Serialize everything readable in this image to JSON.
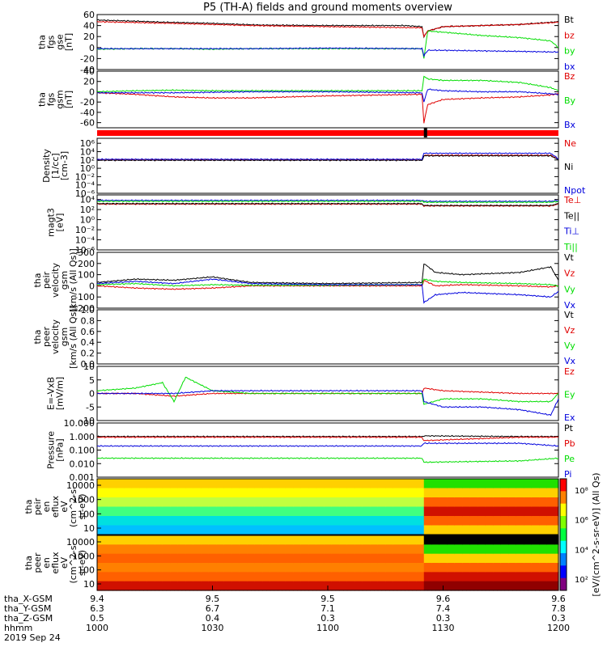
{
  "title": "P5 (TH-A) fields and ground moments overview",
  "colors": {
    "black": "#000000",
    "red": "#e00000",
    "green": "#00dd00",
    "blue": "#0000dd",
    "bar_red": "#ff0000"
  },
  "x_axis": {
    "ticks": [
      {
        "label": "1000",
        "x": 0
      },
      {
        "label": "1030",
        "x": 30
      },
      {
        "label": "1100",
        "x": 60
      },
      {
        "label": "1130",
        "x": 90
      },
      {
        "label": "1200",
        "x": 120
      }
    ],
    "orbit_rows": [
      {
        "label": "tha_X-GSM",
        "values": [
          "9.4",
          "9.5",
          "9.5",
          "9.6",
          "9.6"
        ]
      },
      {
        "label": "tha_Y-GSM",
        "values": [
          "6.3",
          "6.7",
          "7.1",
          "7.4",
          "7.8"
        ]
      },
      {
        "label": "tha_Z-GSM",
        "values": [
          "0.5",
          "0.4",
          "0.3",
          "0.3",
          "0.3"
        ]
      },
      {
        "label": "hhmm",
        "values": [
          "1000",
          "1030",
          "1100",
          "1130",
          "1200"
        ]
      }
    ],
    "date": "2019 Sep 24"
  },
  "chart_data": [
    {
      "type": "line",
      "panel": "fgs_gse",
      "ylabel": [
        "tha",
        "fgs",
        "gse",
        "[nT]"
      ],
      "ylim": [
        -40,
        60
      ],
      "yticks": [
        -40,
        -20,
        0,
        20,
        40,
        60
      ],
      "series": [
        {
          "name": "Bt",
          "color": "black",
          "x": [
            0,
            10,
            18,
            25,
            30,
            34,
            38,
            42,
            60,
            80,
            84.5,
            85,
            86,
            90,
            100,
            110,
            118,
            120
          ],
          "y": [
            50,
            48,
            46,
            45,
            44,
            43,
            42,
            41,
            40,
            40,
            38,
            20,
            30,
            38,
            40,
            42,
            46,
            47
          ]
        },
        {
          "name": "bz",
          "color": "red",
          "x": [
            0,
            20,
            40,
            60,
            84.5,
            85,
            86,
            90,
            100,
            110,
            120
          ],
          "y": [
            47,
            44,
            40,
            38,
            36,
            20,
            30,
            38,
            40,
            42,
            46
          ]
        },
        {
          "name": "by",
          "color": "green",
          "x": [
            0,
            10,
            20,
            30,
            40,
            60,
            84.5,
            85,
            86,
            90,
            100,
            110,
            118,
            120
          ],
          "y": [
            -3,
            -2,
            -2,
            -3,
            -2,
            -2,
            -2,
            -20,
            30,
            28,
            22,
            18,
            12,
            0
          ]
        },
        {
          "name": "bx",
          "color": "blue",
          "x": [
            0,
            20,
            40,
            60,
            84.5,
            85,
            86,
            90,
            100,
            110,
            118,
            120
          ],
          "y": [
            -2,
            -2,
            -2,
            -1,
            -2,
            -15,
            -5,
            -5,
            -6,
            -7,
            -8,
            -8
          ]
        }
      ]
    },
    {
      "type": "line",
      "panel": "fgs_gsm",
      "ylabel": [
        "tha",
        "fgs",
        "gsm",
        "[nT]"
      ],
      "ylim": [
        -70,
        40
      ],
      "yticks": [
        -60,
        -40,
        -20,
        0,
        20,
        40
      ],
      "series": [
        {
          "name": "Bz",
          "color": "red",
          "x": [
            0,
            10,
            20,
            30,
            40,
            60,
            84.5,
            85,
            86,
            90,
            100,
            110,
            118,
            120
          ],
          "y": [
            -2,
            -5,
            -10,
            -12,
            -12,
            -8,
            -5,
            -60,
            -25,
            -15,
            -12,
            -10,
            -6,
            -4
          ]
        },
        {
          "name": "By",
          "color": "green",
          "x": [
            0,
            10,
            20,
            30,
            40,
            60,
            84.5,
            85,
            86,
            90,
            100,
            110,
            118,
            120
          ],
          "y": [
            0,
            2,
            3,
            2,
            2,
            2,
            2,
            30,
            25,
            22,
            22,
            18,
            8,
            2
          ]
        },
        {
          "name": "Bx",
          "color": "blue",
          "x": [
            0,
            20,
            40,
            60,
            84.5,
            85,
            86,
            90,
            100,
            110,
            120
          ],
          "y": [
            -2,
            -2,
            0,
            0,
            -2,
            -20,
            5,
            2,
            0,
            0,
            -5
          ]
        }
      ]
    },
    {
      "type": "line",
      "panel": "density",
      "ylabel": [
        "Density",
        "[1/cc]",
        "[cm-3]"
      ],
      "ylim_log10": [
        -7,
        4
      ],
      "ytick_labels": [
        "10⁶",
        "10⁴",
        "10²",
        "10⁰",
        "10⁻²",
        "10⁻⁴",
        "10⁻⁶"
      ],
      "series": [
        {
          "name": "Ne",
          "color": "red",
          "x": [
            0,
            20,
            40,
            84.5,
            85,
            90,
            118,
            120
          ],
          "log10_y": [
            -0.3,
            -0.3,
            -0.3,
            -0.3,
            0.6,
            0.6,
            0.6,
            -0.2
          ]
        },
        {
          "name": "Ni",
          "color": "black",
          "x": [
            0,
            20,
            40,
            84.5,
            85,
            90,
            118,
            120
          ],
          "log10_y": [
            -0.4,
            -0.4,
            -0.4,
            -0.4,
            0.5,
            0.5,
            0.5,
            -0.3
          ]
        },
        {
          "name": "Npot",
          "color": "blue",
          "x": [
            0,
            20,
            40,
            84.5,
            85,
            90,
            118,
            120
          ],
          "log10_y": [
            -0.2,
            -0.2,
            -0.2,
            -0.2,
            1.0,
            1.0,
            1.0,
            -0.1
          ]
        }
      ]
    },
    {
      "type": "line",
      "panel": "temperature",
      "ylabel": [
        "magt3",
        "[eV]"
      ],
      "ylim_log10": [
        -7,
        5
      ],
      "ytick_labels": [
        "10⁴",
        "10²",
        "10⁰",
        "10⁻²",
        "10⁻⁴",
        "10⁻⁶"
      ],
      "series": [
        {
          "name": "Te⊥",
          "color": "red",
          "x": [
            0,
            40,
            84.5,
            85,
            118,
            120
          ],
          "log10_y": [
            3.0,
            3.0,
            3.0,
            2.6,
            2.6,
            3.0
          ]
        },
        {
          "name": "Te||",
          "color": "black",
          "x": [
            0,
            40,
            84.5,
            85,
            118,
            120
          ],
          "log10_y": [
            3.1,
            3.1,
            3.1,
            2.7,
            2.7,
            3.1
          ]
        },
        {
          "name": "Ti⊥",
          "color": "blue",
          "x": [
            0,
            40,
            84.5,
            85,
            118,
            120
          ],
          "log10_y": [
            3.8,
            3.8,
            3.8,
            3.6,
            3.6,
            3.8
          ]
        },
        {
          "name": "Ti||",
          "color": "green",
          "x": [
            0,
            40,
            84.5,
            85,
            118,
            120
          ],
          "log10_y": [
            3.6,
            3.6,
            3.6,
            3.4,
            3.4,
            3.6
          ]
        }
      ]
    },
    {
      "type": "line",
      "panel": "peir_velocity",
      "ylabel": [
        "tha",
        "peir",
        "velocity",
        "gsm",
        "[km/s (All Qs)]"
      ],
      "ylim": [
        -200,
        300
      ],
      "yticks": [
        -200,
        -100,
        0,
        100,
        200,
        300
      ],
      "series": [
        {
          "name": "Vt",
          "color": "black",
          "x": [
            0,
            10,
            20,
            30,
            40,
            60,
            84.5,
            85,
            88,
            95,
            110,
            118,
            120
          ],
          "y": [
            30,
            60,
            50,
            80,
            30,
            20,
            30,
            200,
            120,
            100,
            120,
            170,
            50
          ]
        },
        {
          "name": "Vz",
          "color": "red",
          "x": [
            0,
            10,
            20,
            30,
            40,
            60,
            84.5,
            85,
            88,
            95,
            110,
            118,
            120
          ],
          "y": [
            0,
            -20,
            -30,
            -20,
            0,
            0,
            0,
            50,
            0,
            10,
            0,
            -10,
            0
          ]
        },
        {
          "name": "Vy",
          "color": "green",
          "x": [
            0,
            10,
            20,
            30,
            40,
            60,
            84.5,
            85,
            88,
            95,
            110,
            118,
            120
          ],
          "y": [
            10,
            20,
            0,
            10,
            5,
            5,
            10,
            60,
            40,
            30,
            20,
            10,
            0
          ]
        },
        {
          "name": "Vx",
          "color": "blue",
          "x": [
            0,
            10,
            20,
            30,
            40,
            60,
            84.5,
            85,
            88,
            95,
            110,
            118,
            120
          ],
          "y": [
            20,
            40,
            20,
            60,
            20,
            10,
            10,
            -150,
            -80,
            -60,
            -80,
            -100,
            -50
          ]
        }
      ]
    },
    {
      "type": "line",
      "panel": "peer_velocity",
      "ylabel": [
        "tha",
        "peer",
        "velocity",
        "gsm",
        "[km/s (All Qs)]"
      ],
      "ylim": [
        0,
        1
      ],
      "yticks": [
        0,
        0.2,
        0.4,
        0.6,
        0.8,
        1
      ],
      "ytick_labels": [
        "0.0",
        "0.2",
        "0.4",
        "0.6",
        "0.8",
        "1.0"
      ],
      "series": [
        {
          "name": "Vt",
          "color": "black",
          "x": [],
          "y": []
        },
        {
          "name": "Vz",
          "color": "red",
          "x": [],
          "y": []
        },
        {
          "name": "Vy",
          "color": "green",
          "x": [],
          "y": []
        },
        {
          "name": "Vx",
          "color": "blue",
          "x": [],
          "y": []
        }
      ]
    },
    {
      "type": "line",
      "panel": "efield",
      "ylabel": [
        "E=-VxB",
        "[mV/m]"
      ],
      "ylim": [
        -10,
        10
      ],
      "yticks": [
        -10,
        -5,
        0,
        5,
        10
      ],
      "series": [
        {
          "name": "Ez",
          "color": "red",
          "x": [
            0,
            10,
            20,
            30,
            40,
            60,
            84.5,
            85,
            90,
            100,
            110,
            118,
            120
          ],
          "y": [
            0,
            0,
            -1,
            0,
            0,
            0,
            0,
            2,
            1,
            0.5,
            0,
            0,
            0
          ]
        },
        {
          "name": "Ey",
          "color": "green",
          "x": [
            0,
            10,
            17,
            20,
            23,
            30,
            40,
            60,
            84.5,
            85,
            90,
            100,
            110,
            118,
            120
          ],
          "y": [
            1,
            2,
            4,
            -3,
            6,
            1,
            0,
            0,
            0,
            -4,
            -2,
            -2,
            -3,
            -3,
            0
          ]
        },
        {
          "name": "Ex",
          "color": "blue",
          "x": [
            0,
            10,
            20,
            30,
            40,
            60,
            84.5,
            85,
            90,
            100,
            110,
            118,
            120
          ],
          "y": [
            0,
            0,
            0,
            1,
            1,
            1,
            1,
            -3,
            -5,
            -5,
            -6,
            -8,
            -2
          ]
        }
      ]
    },
    {
      "type": "line",
      "panel": "pressure",
      "ylabel": [
        "Pressure",
        "[nPa]"
      ],
      "ylim_log10": [
        -3,
        1
      ],
      "yticks_log10": [
        -3,
        -2,
        -1,
        0,
        1
      ],
      "ytick_labels": [
        "0.001",
        "0.010",
        "0.100",
        "1.000",
        "10.000"
      ],
      "series": [
        {
          "name": "Pt",
          "color": "black",
          "x": [
            0,
            40,
            84.5,
            85,
            110,
            120
          ],
          "log10_y": [
            0.0,
            0.0,
            0.0,
            0.05,
            0.0,
            0.0
          ]
        },
        {
          "name": "Pb",
          "color": "red",
          "x": [
            0,
            40,
            84.5,
            85,
            110,
            120
          ],
          "log10_y": [
            -0.05,
            -0.05,
            -0.05,
            -0.3,
            -0.05,
            -0.05
          ]
        },
        {
          "name": "Pe",
          "color": "green",
          "x": [
            0,
            40,
            84.5,
            85,
            110,
            120
          ],
          "log10_y": [
            -1.6,
            -1.6,
            -1.6,
            -1.9,
            -1.8,
            -1.6
          ]
        },
        {
          "name": "Pi",
          "color": "blue",
          "x": [
            0,
            40,
            84.5,
            85,
            110,
            120
          ],
          "log10_y": [
            -0.7,
            -0.7,
            -0.7,
            -0.5,
            -0.5,
            -0.7
          ]
        }
      ]
    },
    {
      "type": "heatmap",
      "panel": "peir_spectrogram",
      "ylabel": [
        "tha",
        "peir",
        "en",
        "eflux",
        "eV",
        "(cm^2-s-",
        "sr-eV)"
      ],
      "ytick_labels": [
        "10",
        "100",
        "1000",
        "10000"
      ]
    },
    {
      "type": "heatmap",
      "panel": "peer_spectrogram",
      "ylabel": [
        "tha",
        "peer",
        "en",
        "eflux",
        "eV",
        "(cm^2-s-",
        "sr-eV)"
      ],
      "ytick_labels": [
        "10",
        "100",
        "1000",
        "10000"
      ]
    }
  ],
  "colorbar": {
    "labels": [
      "10⁸",
      "10⁶",
      "10⁴",
      "10²"
    ],
    "title": "[eV/(cm^2-s-sr-eV)] (All Qs)"
  },
  "red_bar": {
    "label": "red spin bar"
  }
}
